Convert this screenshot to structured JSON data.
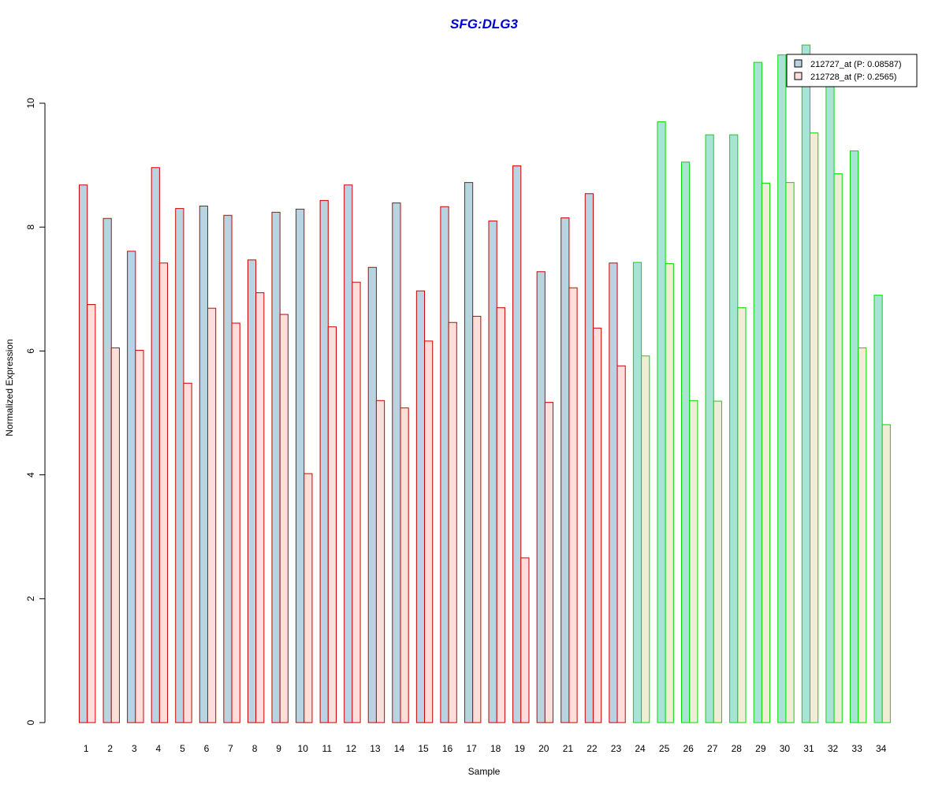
{
  "chart_data": {
    "type": "bar",
    "title": "SFG:DLG3",
    "xlabel": "Sample",
    "ylabel": "Normalized Expression",
    "ylim": [
      0,
      10.95
    ],
    "yticks": [
      "0",
      "2",
      "4",
      "6",
      "8",
      "10"
    ],
    "categories": [
      "1",
      "2",
      "3",
      "4",
      "5",
      "6",
      "7",
      "8",
      "9",
      "10",
      "11",
      "12",
      "13",
      "14",
      "15",
      "16",
      "17",
      "18",
      "19",
      "20",
      "21",
      "22",
      "23",
      "24",
      "25",
      "26",
      "27",
      "28",
      "29",
      "30",
      "31",
      "32",
      "33",
      "34"
    ],
    "group_a_count": 23,
    "series": [
      {
        "name": "212727_at (P: 0.08587)",
        "values": [
          8.68,
          8.14,
          7.61,
          8.96,
          8.3,
          8.34,
          8.19,
          7.47,
          8.24,
          8.29,
          8.43,
          8.68,
          7.35,
          8.39,
          6.97,
          8.33,
          8.72,
          8.1,
          8.99,
          7.28,
          8.15,
          8.54,
          7.42,
          7.43,
          9.7,
          9.05,
          9.49,
          9.49,
          10.66,
          10.78,
          10.94,
          10.4,
          9.23,
          6.9
        ]
      },
      {
        "name": "212728_at (P: 0.2565)",
        "values": [
          6.75,
          6.05,
          6.01,
          7.42,
          5.48,
          6.69,
          6.45,
          6.94,
          6.59,
          4.02,
          6.39,
          7.11,
          5.2,
          5.08,
          6.16,
          6.46,
          6.56,
          6.7,
          2.66,
          5.17,
          7.02,
          6.37,
          5.76,
          5.92,
          7.41,
          5.2,
          5.19,
          6.7,
          8.71,
          8.72,
          9.52,
          8.86,
          6.05,
          4.81
        ]
      }
    ],
    "colors": {
      "title": "#0000CC",
      "group_a_fill_1": "#B8D4E2",
      "group_a_fill_2": "#FDDEDB",
      "group_a_border": "#CC0000",
      "group_b_fill_1": "#A8E4D6",
      "group_b_fill_2": "#F0ECD6",
      "group_b_border": "#00DD00",
      "legend_swatch_1": "#B8D4E2",
      "legend_swatch_2": "#FDDEDB"
    },
    "legend_position": "top-right"
  }
}
